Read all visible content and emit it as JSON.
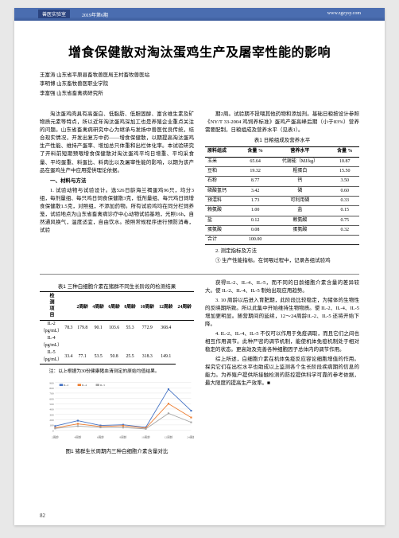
{
  "header": {
    "badge": "兽医实验室",
    "issue": "2019年第6期",
    "url": "www.zgzysy.com"
  },
  "title": "增食保健散对淘汰蛋鸡生产及屠宰性能的影响",
  "authors": [
    {
      "name": "王富涛",
      "affil": "山东省平原县畜牧兽医局王村畜牧兽医站"
    },
    {
      "name": "李明博",
      "affil": "山东畜牧兽医职业学院"
    },
    {
      "name": "李富强",
      "affil": "山东省畜禽病研究所"
    }
  ],
  "body": {
    "intro1": "淘汰蛋鸡肉具有高蛋白、低脂肪、低胆固醇、富含维生素及矿物质元素等特点，所以近年淘汰蛋鸡深加工也是养殖企业重点关注的问题。山东省畜禽病研究中心为继承与发扬中兽医优良传统，结合现实情况，开发出复方中药——增食保健散，以期提高淘汰蛋鸡生产性能、维持产蛋率、增加总只体重和出栏体化率。本试验研究了开料前短期预喂增食保健散对淘汰蛋鸡平均日增重、平均采食量、平均蛋重、料蛋比、料肉比以及屠宰性能的影响，以期为该产品在蛋鸡生产中应用提供理论依据。",
    "section1_title": "一、材料与方法",
    "section1_1": "1. 试验动物与试验设计。选526日龄海兰褐蛋鸡96只，均分3组，每剂量组、每只鸡日饲食保健散3克，低剂量组、每只鸡日饲增食保健散1.5克，对照组，不添加药物。所有试验鸡均在同分栏饲养笼，试验地点为山东省畜禽病诊疗中心动物试验基地，光照16h，自然通风换气，温度适宜，自由饮水。按照常规程序进行预防消毒，试验",
    "intro2": "期2周。试验期不投喂其他药物和添加剂。基础日粮按设计参照《NY/T 33-2004 鸡饲养标准》蛋鸡产蛋高峰后期（小于83%）营养需要配制，日粮组成及营养水平（见表1）。",
    "table1_caption": "表1 日粮组成及营养水平",
    "table1": {
      "headers": [
        "原料组成",
        "含量 %",
        "营养水平",
        "含量 %"
      ],
      "rows": [
        [
          "玉米",
          "65.64",
          "代谢能（MJ/kg）",
          "10.87"
        ],
        [
          "豆粕",
          "19.32",
          "粗蛋白",
          "15.50"
        ],
        [
          "石粉",
          "8.77",
          "钙",
          "3.50"
        ],
        [
          "磷酸氢钙",
          "3.42",
          "磷",
          "0.60"
        ],
        [
          "预混料",
          "1.73",
          "可利用磷",
          "0.33"
        ],
        [
          "赖氨酸",
          "1.00",
          "盐",
          "0.15"
        ],
        [
          "盐",
          "0.12",
          "赖氨酸",
          "0.75"
        ],
        [
          "蛋氨酸",
          "0.08",
          "蛋氨酸",
          "0.32"
        ],
        [
          "合计",
          "100.00",
          "",
          ""
        ]
      ]
    },
    "section1_2_title": "2. 测定指标及方法",
    "section1_2": "① 生产性能指标。在饲喂过程中，记录各组试验鸡",
    "table2_caption": "表1 三种白细胞介素在猪群不同生长阶段的检测结果",
    "table2": {
      "col_headers": [
        "",
        "2周龄",
        "4周龄",
        "6周龄",
        "8周龄",
        "10周龄",
        "12周龄",
        "24周龄"
      ],
      "row_label": "检测项目",
      "rows": [
        [
          "IL-2（pg/mL）",
          "78.3",
          "179.8",
          "90.1",
          "103.6",
          "55.3",
          "772.9",
          "368.4"
        ],
        [
          "IL-4（pg/mL）",
          "",
          "",
          "",
          "",
          "",
          "",
          ""
        ],
        [
          "IL-5（pg/mL）",
          "33.4",
          "77.1",
          "53.5",
          "50.8",
          "25.5",
          "318.3",
          "149.1"
        ]
      ]
    },
    "chart_note": "注：以上根据为30份健康猪血清测定的原始均值结果。",
    "chart": {
      "type": "line",
      "x_labels": [
        "2周龄",
        "4周龄",
        "6周龄",
        "8周龄",
        "10周龄",
        "12周龄",
        "24周龄"
      ],
      "series": [
        {
          "name": "IL-2",
          "color": "#4472c4",
          "values": [
            78.3,
            179.8,
            90.1,
            103.6,
            55.3,
            772.9,
            368.4
          ]
        },
        {
          "name": "IL-4",
          "color": "#ed7d31",
          "values": [
            45,
            120,
            70,
            85,
            40,
            500,
            240
          ]
        },
        {
          "name": "IL-5",
          "color": "#a5a5a5",
          "values": [
            33.4,
            77.1,
            53.5,
            50.8,
            25.5,
            318.3,
            149.1
          ]
        }
      ],
      "ylim": [
        0,
        900
      ],
      "ytick_step": 100,
      "background_color": "#ffffff",
      "grid_color": "#d9d9d9"
    },
    "fig_caption": "图1 猪群生长周期内三种白细胞介素含量对比",
    "right_paras": [
      "获得IL-2、IL-4、IL-5，而不同的日龄细胞介素含量的差异较大。使 IL-2、IL-4、IL-5 制始出现应用趋势。",
      "3. 10 周龄以后进入育肥期，此阶段比较稳定，为猪体的生物性的反映期所致。所以此集中开始维持生物物质。使 IL-2、IL-4、IL-5 增加更明显。随营期间的延续，12～24周龄IL-2、IL-5 还将开始下降。",
      "4. IL-2、IL-4、IL-5 不仅可以作用于免疫调取，而且它们之间也相互作用调节。此种严密的调节机制，能使机体免疫机制处于相对稳定的状态。更高效及完善各种细胞因子总体内的调节作用。",
      "综上所述，白细胞介素在机体免疫反应容论细胞增值的作用。探究它们在出栏水平也助成以上监测各个生长阶段疾病期的信息的能力。为养殖户提供所接触检测的防控提供科学可靠的参考依据，最大限度的提高生产效率。"
    ],
    "right_end_mark": "■"
  },
  "pagenum": "82"
}
